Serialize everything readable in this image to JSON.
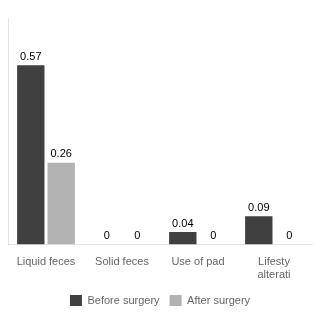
{
  "chart_data": {
    "type": "bar",
    "categories": [
      "Liquid feces",
      "Solid feces",
      "Use of pad",
      "Lifesty\nalterati"
    ],
    "series": [
      {
        "name": "Before surgery",
        "color": "#404040",
        "values": [
          0.57,
          0,
          0.04,
          0.09
        ]
      },
      {
        "name": "After surgery",
        "color": "#b3b3b3",
        "values": [
          0.26,
          0,
          0,
          0
        ]
      }
    ],
    "ylim": [
      0,
      0.72
    ],
    "grid": false,
    "legend": "bottom",
    "data_labels": true,
    "tick_labels": "x"
  }
}
